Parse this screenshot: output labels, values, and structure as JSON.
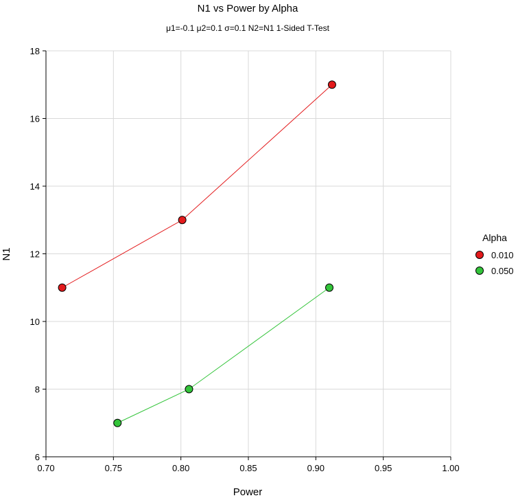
{
  "chart_data": {
    "type": "line",
    "title": "N1 vs Power by Alpha",
    "subtitle": "μ1=-0.1 μ2=0.1 σ=0.1 N2=N1 1-Sided T-Test",
    "xlabel": "Power",
    "ylabel": "N1",
    "xlim": [
      0.7,
      1.0
    ],
    "ylim": [
      6,
      18
    ],
    "x_ticks": [
      "0.70",
      "0.75",
      "0.80",
      "0.85",
      "0.90",
      "0.95",
      "1.00"
    ],
    "y_ticks": [
      "6",
      "8",
      "10",
      "12",
      "14",
      "16",
      "18"
    ],
    "grid": true,
    "legend": {
      "title": "Alpha",
      "placement": "right"
    },
    "series": [
      {
        "name": "0.010",
        "color": "#e31a1c",
        "points": [
          {
            "x": 0.712,
            "y": 11
          },
          {
            "x": 0.801,
            "y": 13
          },
          {
            "x": 0.912,
            "y": 17
          }
        ]
      },
      {
        "name": "0.050",
        "color": "#33c43a",
        "points": [
          {
            "x": 0.753,
            "y": 7
          },
          {
            "x": 0.806,
            "y": 8
          },
          {
            "x": 0.91,
            "y": 11
          }
        ]
      }
    ]
  }
}
